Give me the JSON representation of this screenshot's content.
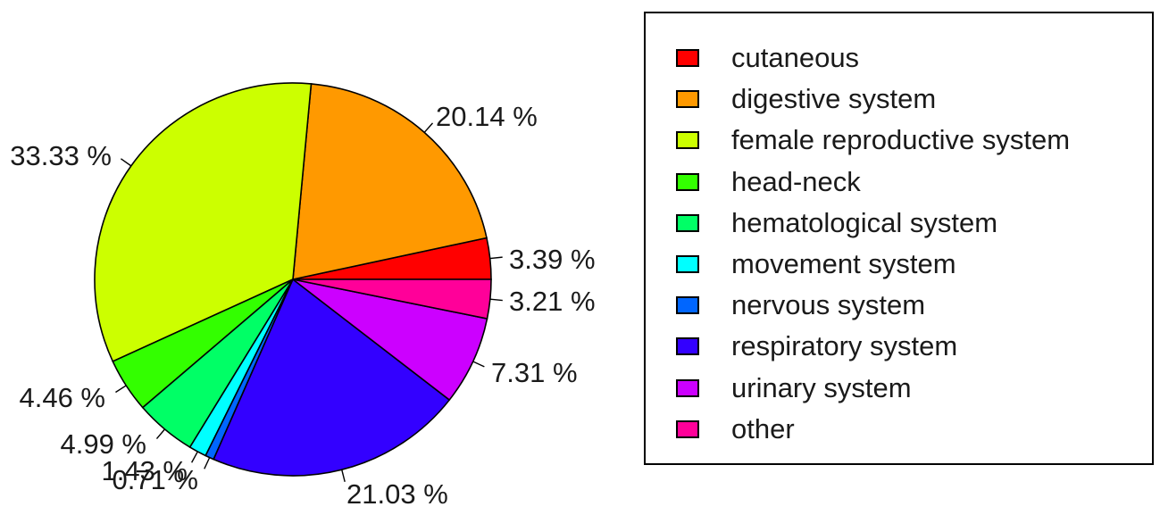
{
  "chart_data": {
    "type": "pie",
    "slices": [
      {
        "label": "cutaneous",
        "value": 3.39,
        "value_label": "3.39 %",
        "color": "#FF0000"
      },
      {
        "label": "digestive system",
        "value": 20.14,
        "value_label": "20.14 %",
        "color": "#FF9900"
      },
      {
        "label": "female reproductive system",
        "value": 33.33,
        "value_label": "33.33 %",
        "color": "#CCFF00"
      },
      {
        "label": "head-neck",
        "value": 4.46,
        "value_label": "4.46 %",
        "color": "#33FF00"
      },
      {
        "label": "hematological system",
        "value": 4.99,
        "value_label": "4.99 %",
        "color": "#00FF66"
      },
      {
        "label": "movement system",
        "value": 1.43,
        "value_label": "1.43 %",
        "color": "#00FFFF"
      },
      {
        "label": "nervous system",
        "value": 0.71,
        "value_label": "0.71 %",
        "color": "#0066FF"
      },
      {
        "label": "respiratory system",
        "value": 21.03,
        "value_label": "21.03 %",
        "color": "#3300FF"
      },
      {
        "label": "urinary system",
        "value": 7.31,
        "value_label": "7.31 %",
        "color": "#CC00FF"
      },
      {
        "label": "other",
        "value": 3.21,
        "value_label": "3.21 %",
        "color": "#FF0099"
      }
    ],
    "legend_position": "right"
  }
}
